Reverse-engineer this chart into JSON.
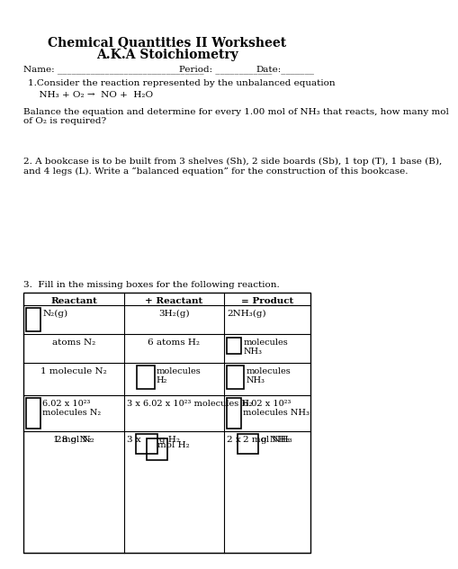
{
  "title_line1": "Chemical Quantities II Worksheet",
  "title_line2": "A.K.A Stoichiometry",
  "name_label": "Name: _______________________________",
  "period_label": "Period: ____________",
  "date_label": "Date:_______",
  "q1_intro": "1.Consider the reaction represented by the unbalanced equation",
  "q1_eq": "  NH₃ + O₂ →  NO +  H₂O",
  "q1_balance": "Balance the equation and determine for every 1.00 mol of NH₃ that reacts, how many mol\nof O₂ is required?",
  "q2": "2. A bookcase is to be built from 3 shelves (Sh), 2 side boards (Sb), 1 top (T), 1 base (B),\nand 4 legs (L). Write a “balanced equation” for the construction of this bookcase.",
  "q3_intro": "3.  Fill in the missing boxes for the following reaction.",
  "table_headers": [
    "Reactant",
    "+ Reactant",
    "= Product"
  ],
  "row0": [
    "N₂(g)",
    "3H₂(g)",
    "2NH₃(g)"
  ],
  "row1_left": "atoms N₂",
  "row1_mid": "6 atoms H₂",
  "row1_right": "molecules\nNH₃",
  "row2_left": "1 molecule N₂",
  "row2_mid": "molecules\nH₂",
  "row2_right": "molecules\nNH₃",
  "row3_left": "6.02 x 10²³\nmolecules N₂",
  "row3_mid": "3 x 6.02 x 10²³ molecules H₂",
  "row3_right": "6.02 x 10²³\nmolecules NH₃",
  "row4_left": "1 mol N₂",
  "row4_mid": "mol H₂",
  "row4_right": "2 mol NH₃",
  "row5_left": "28 g N₂",
  "row5_mid_prefix": "3 x",
  "row5_mid_suffix": "g H₂",
  "row5_right_prefix": "2 x",
  "row5_right_suffix": "g NH₃",
  "bg_color": "#ffffff",
  "text_color": "#000000",
  "line_color": "#000000"
}
